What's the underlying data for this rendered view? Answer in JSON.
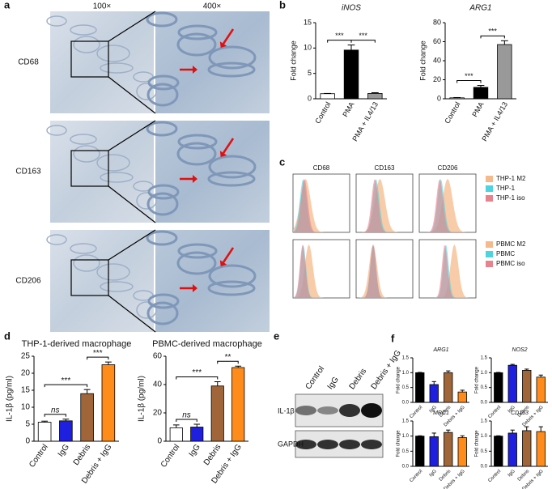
{
  "panel_labels": [
    "a",
    "b",
    "c",
    "d",
    "e",
    "f"
  ],
  "panel_a": {
    "columns": [
      "100×",
      "400×"
    ],
    "rows": [
      "CD68",
      "CD163",
      "CD206"
    ]
  },
  "panel_c": {
    "columns": [
      "CD68",
      "CD163",
      "CD206"
    ],
    "legends": [
      [
        {
          "name": "THP-1 M2",
          "color": "#f6b98c"
        },
        {
          "name": "THP-1",
          "color": "#4dd4df"
        },
        {
          "name": "THP-1 iso",
          "color": "#e8828c"
        }
      ],
      [
        {
          "name": "PBMC M2",
          "color": "#f6b98c"
        },
        {
          "name": "PBMC",
          "color": "#4dd4df"
        },
        {
          "name": "PBMC iso",
          "color": "#e8828c"
        }
      ]
    ]
  },
  "panel_e": {
    "lanes": [
      "Control",
      "IgG",
      "Debris",
      "Debris + IgG"
    ],
    "rows": [
      "IL-1β",
      "GAPDH"
    ]
  },
  "chart_data": [
    {
      "type": "bar",
      "title": "iNOS",
      "title_italic": true,
      "ylabel": "Fold change",
      "categories": [
        "Control",
        "PMA",
        "PMA + IL4/13"
      ],
      "values": [
        1,
        9.6,
        1.05
      ],
      "errors": [
        0.05,
        1,
        0.15
      ],
      "colors": [
        "#ffffff",
        "#000000",
        "#999999"
      ],
      "ylim": [
        0,
        15
      ],
      "yticks": [
        0,
        5,
        10,
        15
      ],
      "annotations": [
        {
          "text": "***",
          "between": [
            "Control",
            "PMA"
          ]
        },
        {
          "text": "***",
          "between": [
            "PMA",
            "PMA + IL4/13"
          ]
        }
      ]
    },
    {
      "type": "bar",
      "title": "ARG1",
      "title_italic": true,
      "ylabel": "Fold change",
      "categories": [
        "Control",
        "PMA",
        "PMA + IL4/13"
      ],
      "values": [
        1,
        12,
        57
      ],
      "errors": [
        0.3,
        2,
        4
      ],
      "colors": [
        "#ffffff",
        "#000000",
        "#999999"
      ],
      "ylim": [
        0,
        80
      ],
      "yticks": [
        0,
        20,
        40,
        60,
        80
      ],
      "annotations": [
        {
          "text": "***",
          "between": [
            "Control",
            "PMA"
          ]
        },
        {
          "text": "***",
          "between": [
            "PMA",
            "PMA + IL4/13"
          ]
        }
      ]
    },
    {
      "type": "bar",
      "title": "THP-1-derived macrophage",
      "title_italic": false,
      "ylabel": "IL-1β (pg/ml)",
      "categories": [
        "Control",
        "IgG",
        "Debris",
        "Debris + IgG"
      ],
      "values": [
        5.6,
        6,
        14,
        22.5
      ],
      "errors": [
        0.3,
        0.5,
        1.2,
        0.8
      ],
      "colors": [
        "#ffffff",
        "#1f1fe0",
        "#a0663a",
        "#ff8c1a"
      ],
      "ylim": [
        0,
        25
      ],
      "yticks": [
        0,
        5,
        10,
        15,
        20,
        25
      ],
      "annotations": [
        {
          "text": "ns",
          "between": [
            "Control",
            "IgG"
          ]
        },
        {
          "text": "***",
          "between": [
            "Control",
            "Debris"
          ]
        },
        {
          "text": "***",
          "between": [
            "Debris",
            "Debris + IgG"
          ]
        }
      ]
    },
    {
      "type": "bar",
      "title": "PBMC-derived macrophage",
      "title_italic": false,
      "ylabel": "IL-1β (pg/ml)",
      "categories": [
        "Control",
        "IgG",
        "Debris",
        "Debris + IgG"
      ],
      "values": [
        9.5,
        10,
        39,
        52
      ],
      "errors": [
        2,
        2,
        3,
        1
      ],
      "colors": [
        "#ffffff",
        "#1f1fe0",
        "#a0663a",
        "#ff8c1a"
      ],
      "ylim": [
        0,
        60
      ],
      "yticks": [
        0,
        20,
        40,
        60
      ],
      "annotations": [
        {
          "text": "ns",
          "between": [
            "Control",
            "IgG"
          ]
        },
        {
          "text": "***",
          "between": [
            "Control",
            "Debris"
          ]
        },
        {
          "text": "**",
          "between": [
            "Debris",
            "Debris + IgG"
          ]
        }
      ]
    },
    {
      "type": "bar",
      "title": "ARG1",
      "title_italic": true,
      "ylabel": "Fold change",
      "categories": [
        "Control",
        "IgG",
        "Debris",
        "Debris + IgG"
      ],
      "values": [
        1,
        0.6,
        1.0,
        0.35
      ],
      "errors": [
        0.01,
        0.1,
        0.06,
        0.06
      ],
      "colors": [
        "#000000",
        "#1f1fe0",
        "#a0663a",
        "#ff8c1a"
      ],
      "ylim": [
        0,
        1.5
      ],
      "yticks": [
        {
          "value": 0,
          "label": "0.0"
        },
        {
          "value": 0.5,
          "label": "0.5"
        },
        {
          "value": 1,
          "label": "1.0"
        },
        {
          "value": 1.5,
          "label": "1.5"
        }
      ]
    },
    {
      "type": "bar",
      "title": "NOS2",
      "title_italic": true,
      "ylabel": "Fold change",
      "categories": [
        "Control",
        "IgG",
        "Debris",
        "Debris + IgG"
      ],
      "values": [
        1,
        1.25,
        1.08,
        0.85
      ],
      "errors": [
        0.01,
        0.03,
        0.04,
        0.07
      ],
      "colors": [
        "#000000",
        "#1f1fe0",
        "#a0663a",
        "#ff8c1a"
      ],
      "ylim": [
        0,
        1.5
      ],
      "yticks": [
        {
          "value": 0,
          "label": "0.0"
        },
        {
          "value": 0.5,
          "label": "0.5"
        },
        {
          "value": 1,
          "label": "1.0"
        },
        {
          "value": 1.5,
          "label": "1.5"
        }
      ]
    },
    {
      "type": "bar",
      "title": "MRC1",
      "title_italic": true,
      "ylabel": "Fold change",
      "categories": [
        "Control",
        "IgG",
        "Debris",
        "Debris + IgG"
      ],
      "values": [
        1,
        0.98,
        1.12,
        0.95
      ],
      "errors": [
        0.01,
        0.12,
        0.08,
        0.06
      ],
      "colors": [
        "#000000",
        "#1f1fe0",
        "#a0663a",
        "#ff8c1a"
      ],
      "ylim": [
        0,
        1.5
      ],
      "yticks": [
        {
          "value": 0,
          "label": "0.0"
        },
        {
          "value": 0.5,
          "label": "0.5"
        },
        {
          "value": 1,
          "label": "1.0"
        },
        {
          "value": 1.5,
          "label": "1.5"
        }
      ]
    },
    {
      "type": "bar",
      "title": "CD163",
      "title_italic": true,
      "ylabel": "Fold change",
      "categories": [
        "Control",
        "IgG",
        "Debris",
        "Debris + IgG"
      ],
      "values": [
        1,
        1.1,
        1.18,
        1.15
      ],
      "errors": [
        0.01,
        0.1,
        0.13,
        0.16
      ],
      "colors": [
        "#000000",
        "#1f1fe0",
        "#a0663a",
        "#ff8c1a"
      ],
      "ylim": [
        0,
        1.5
      ],
      "yticks": [
        {
          "value": 0,
          "label": "0.0"
        },
        {
          "value": 0.5,
          "label": "0.5"
        },
        {
          "value": 1,
          "label": "1.0"
        },
        {
          "value": 1.5,
          "label": "1.5"
        }
      ]
    }
  ]
}
